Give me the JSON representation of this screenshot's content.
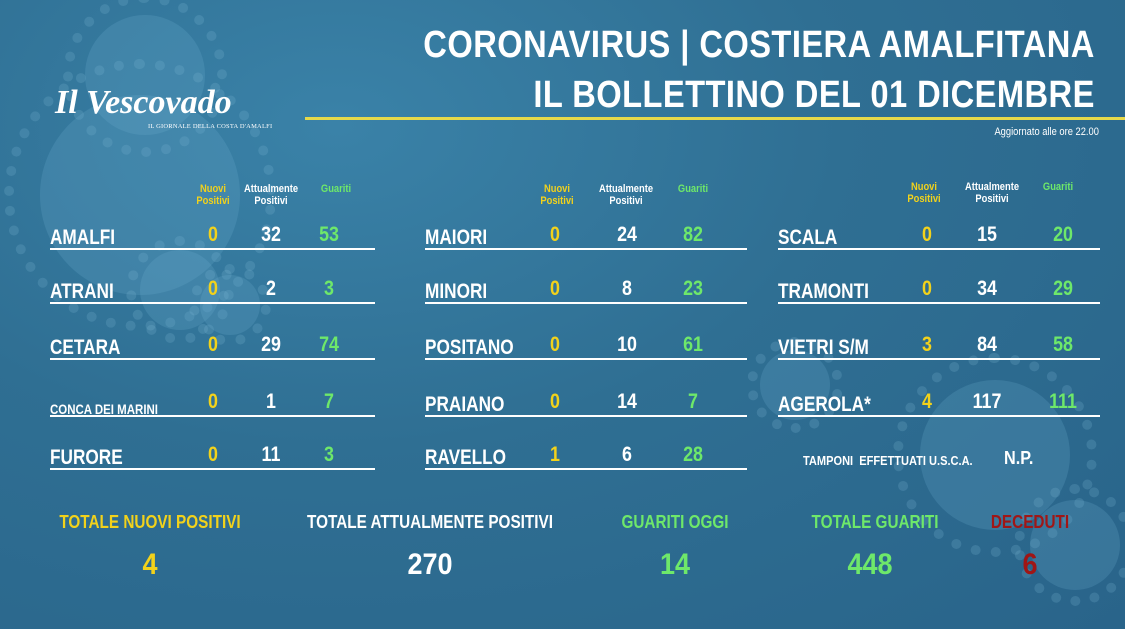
{
  "header": {
    "title_line1": "CORONAVIRUS | COSTIERA AMALFITANA",
    "title_line2": "IL BOLLETTINO DEL 01 DICEMBRE",
    "updated": "Aggiornato alle ore 22.00"
  },
  "logo": {
    "name": "Il Vescovado",
    "subtitle": "IL GIORNALE DELLA COSTA D'AMALFI"
  },
  "columns": {
    "new_line1": "Nuovi",
    "new_line2": "Positivi",
    "current_line1": "Attualmente",
    "current_line2": "Positivi",
    "healed": "Guariti"
  },
  "towns": [
    {
      "name": "AMALFI",
      "new": "0",
      "current": "32",
      "healed": "53"
    },
    {
      "name": "ATRANI",
      "new": "0",
      "current": "2",
      "healed": "3"
    },
    {
      "name": "CETARA",
      "new": "0",
      "current": "29",
      "healed": "74"
    },
    {
      "name": "CONCA DEI MARINI",
      "new": "0",
      "current": "1",
      "healed": "7"
    },
    {
      "name": "FURORE",
      "new": "0",
      "current": "11",
      "healed": "3"
    },
    {
      "name": "MAIORI",
      "new": "0",
      "current": "24",
      "healed": "82"
    },
    {
      "name": "MINORI",
      "new": "0",
      "current": "8",
      "healed": "23"
    },
    {
      "name": "POSITANO",
      "new": "0",
      "current": "10",
      "healed": "61"
    },
    {
      "name": "PRAIANO",
      "new": "0",
      "current": "14",
      "healed": "7"
    },
    {
      "name": "RAVELLO",
      "new": "1",
      "current": "6",
      "healed": "28"
    },
    {
      "name": "SCALA",
      "new": "0",
      "current": "15",
      "healed": "20"
    },
    {
      "name": "TRAMONTI",
      "new": "0",
      "current": "34",
      "healed": "29"
    },
    {
      "name": "VIETRI S/M",
      "new": "3",
      "current": "84",
      "healed": "58"
    },
    {
      "name": "AGEROLA*",
      "new": "4",
      "current": "117",
      "healed": "111"
    }
  ],
  "tamponi": {
    "label": "TAMPONI  EFFETTUATI U.S.C.A.",
    "value": "N.P."
  },
  "totals": {
    "new_label": "TOTALE NUOVI POSITIVI",
    "new_value": "4",
    "current_label": "TOTALE ATTUALMENTE POSITIVI",
    "current_value": "270",
    "today_label": "GUARITI OGGI",
    "today_value": "14",
    "healed_label": "TOTALE GUARITI",
    "healed_value": "448",
    "deaths_label": "DECEDUTI",
    "deaths_value": "6"
  },
  "colors": {
    "background": "#2f6f93",
    "new": "#f2d21b",
    "healed": "#6ee86a",
    "deaths": "#a01616",
    "rule": "#e6d94a"
  }
}
